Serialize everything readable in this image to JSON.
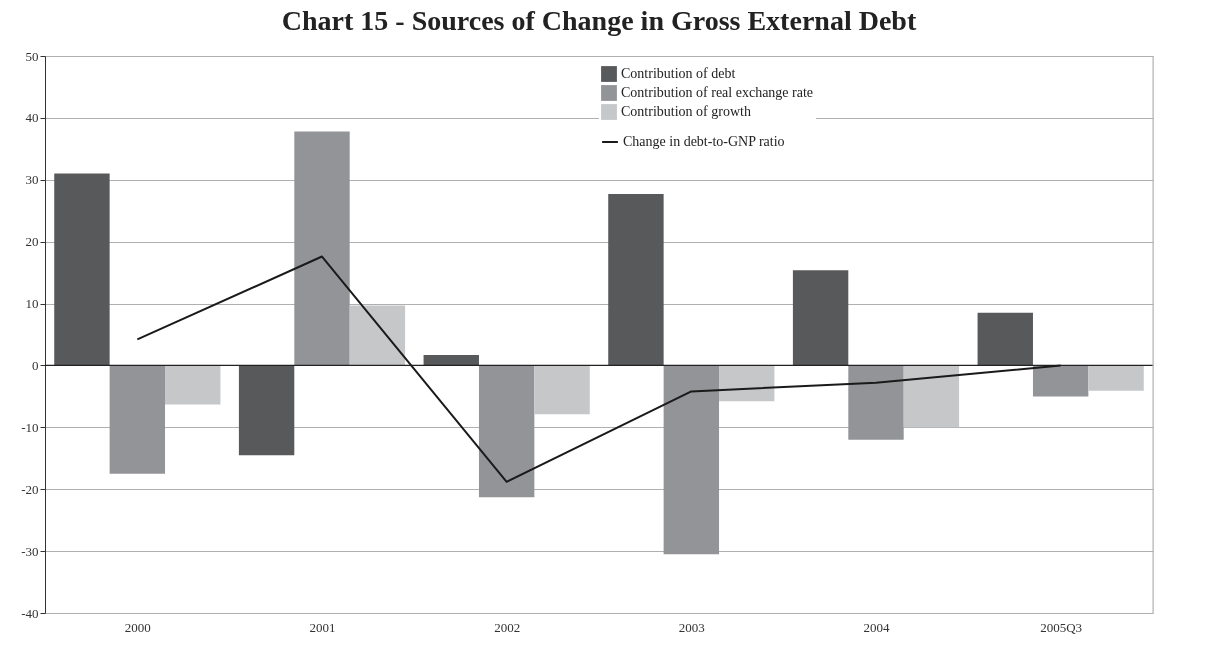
{
  "chart_data": {
    "type": "bar",
    "title": "Chart 15 - Sources of Change in Gross External Debt",
    "categories": [
      "2000",
      "2001",
      "2002",
      "2003",
      "2004",
      "2005Q3"
    ],
    "series": [
      {
        "name": "Contribution of debt",
        "color": "#58595b",
        "values": [
          31,
          -14.5,
          1.7,
          27.7,
          15.4,
          8.5
        ]
      },
      {
        "name": "Contribution of real exchange rate",
        "color": "#939498",
        "values": [
          -17.5,
          37.8,
          -21.3,
          -30.5,
          -12,
          -5
        ]
      },
      {
        "name": "Contribution of growth",
        "color": "#c6c7c9",
        "values": [
          -6.3,
          9.7,
          -7.9,
          -5.8,
          -10,
          -4.1
        ]
      },
      {
        "name": "Change in debt-to-GNP ratio",
        "type": "line",
        "color": "#1a1a1a",
        "values": [
          4.2,
          17.6,
          -18.8,
          -4.2,
          -2.8,
          0
        ]
      }
    ],
    "ylim": [
      -40,
      50
    ],
    "yticks": [
      -40,
      -30,
      -20,
      -10,
      0,
      10,
      20,
      30,
      40,
      50
    ],
    "grid": "y",
    "legend": "top"
  }
}
